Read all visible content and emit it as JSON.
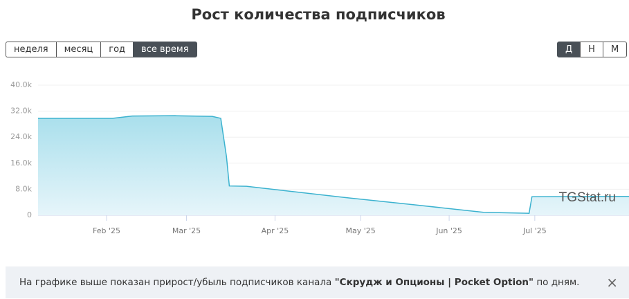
{
  "chart_data": {
    "type": "area",
    "title": "Рост количества подписчиков",
    "x": [
      8,
      34,
      41,
      56,
      69,
      72,
      74,
      75,
      81,
      87,
      115,
      140,
      164,
      180,
      181,
      215
    ],
    "values": [
      29800,
      29800,
      30500,
      30600,
      30400,
      29800,
      18000,
      9000,
      8900,
      8300,
      5500,
      3200,
      900,
      600,
      5700,
      5800
    ],
    "color": "#3bb2cf",
    "xlim": [
      8,
      215
    ],
    "xticks": [
      {
        "value": 32,
        "label": "Feb '25"
      },
      {
        "value": 60,
        "label": "Mar '25"
      },
      {
        "value": 91,
        "label": "Apr '25"
      },
      {
        "value": 121,
        "label": "May '25"
      },
      {
        "value": 152,
        "label": "Jun '25"
      },
      {
        "value": 182,
        "label": "Jul '25"
      }
    ],
    "ylim": [
      0,
      40000
    ],
    "yticks": [
      0,
      {
        "value": 8000,
        "label": "8.0k"
      },
      {
        "value": 16000,
        "label": "16.0k"
      },
      {
        "value": 24000,
        "label": "24.0k"
      },
      {
        "value": 32000,
        "label": "32.0k"
      },
      {
        "value": 40000,
        "label": "40.0k"
      }
    ],
    "grid": true,
    "watermark": "TGStat.ru"
  },
  "controls": {
    "range": [
      "неделя",
      "месяц",
      "год",
      "все время"
    ],
    "range_active": 3,
    "granularity": [
      "Д",
      "Н",
      "М"
    ],
    "granularity_active": 0
  },
  "notice": {
    "before": "На графике выше показан прирост/убыль подписчиков канала ",
    "channel": "\"Скрудж и Опционы | Pocket Option\"",
    "after": " по дням.",
    "close": "×"
  }
}
